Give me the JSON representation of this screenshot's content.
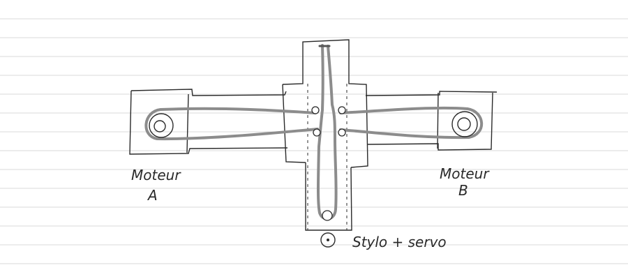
{
  "diagram": {
    "labels": {
      "motor_a_line1": "Moteur",
      "motor_a_line2": "A",
      "motor_b_line1": "Moteur",
      "motor_b_line2": "B",
      "pen_servo": "Stylo + servo"
    },
    "colors": {
      "paper": "#ffffff",
      "ruled_line": "#d9d9d9",
      "ink": "#2a2a2a",
      "belt": "#8c8c8c"
    }
  }
}
